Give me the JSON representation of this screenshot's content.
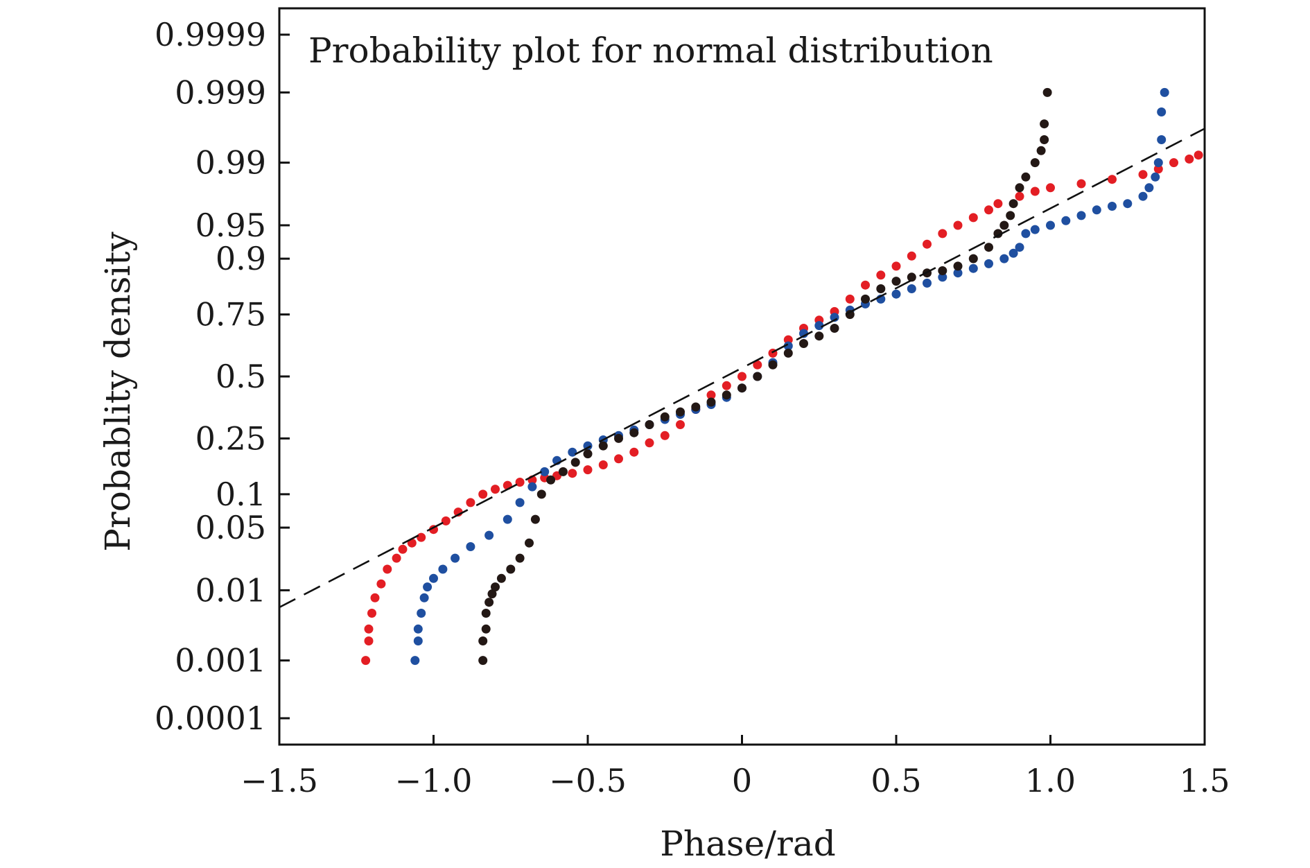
{
  "chart_data": {
    "type": "scatter",
    "title": "Probability plot for normal distribution",
    "xlabel": "Phase/rad",
    "ylabel": "Probablity density",
    "xlim": [
      -1.5,
      1.5
    ],
    "xticks": [
      -1.5,
      -1.0,
      -0.5,
      0,
      0.5,
      1.0,
      1.5
    ],
    "xtick_labels": [
      "−1.5",
      "−1.0",
      "−0.5",
      "0",
      "0.5",
      "1.0",
      "1.5"
    ],
    "yscale": "normal-probability",
    "yticks": [
      0.0001,
      0.001,
      0.01,
      0.05,
      0.1,
      0.25,
      0.5,
      0.75,
      0.9,
      0.95,
      0.99,
      0.999,
      0.9999
    ],
    "ytick_labels": [
      "0.0001",
      "0.001",
      "0.01",
      "0.05",
      "0.1",
      "0.25",
      "0.5",
      "0.75",
      "0.9",
      "0.95",
      "0.99",
      "0.999",
      "0.9999"
    ],
    "grid": false,
    "reference_line": {
      "style": "dashed",
      "color": "#111111",
      "x": [
        -1.5,
        1.5
      ],
      "p": [
        0.006,
        0.9965
      ]
    },
    "series": [
      {
        "color": "#e31e24",
        "x": [
          -1.22,
          -1.21,
          -1.21,
          -1.2,
          -1.19,
          -1.17,
          -1.15,
          -1.12,
          -1.1,
          -1.07,
          -1.04,
          -1.0,
          -0.96,
          -0.92,
          -0.88,
          -0.84,
          -0.8,
          -0.76,
          -0.72,
          -0.68,
          -0.64,
          -0.6,
          -0.55,
          -0.5,
          -0.45,
          -0.4,
          -0.35,
          -0.3,
          -0.25,
          -0.2,
          -0.15,
          -0.1,
          -0.05,
          0.0,
          0.05,
          0.1,
          0.15,
          0.2,
          0.25,
          0.3,
          0.35,
          0.4,
          0.45,
          0.5,
          0.55,
          0.6,
          0.65,
          0.7,
          0.75,
          0.8,
          0.83,
          0.9,
          0.95,
          1.0,
          1.1,
          1.2,
          1.3,
          1.35,
          1.4,
          1.45,
          1.48
        ],
        "p": [
          0.001,
          0.002,
          0.003,
          0.005,
          0.008,
          0.012,
          0.018,
          0.024,
          0.03,
          0.035,
          0.04,
          0.048,
          0.058,
          0.07,
          0.085,
          0.1,
          0.11,
          0.118,
          0.125,
          0.13,
          0.135,
          0.14,
          0.146,
          0.155,
          0.168,
          0.185,
          0.205,
          0.235,
          0.26,
          0.3,
          0.36,
          0.42,
          0.46,
          0.5,
          0.55,
          0.6,
          0.655,
          0.7,
          0.73,
          0.76,
          0.8,
          0.84,
          0.865,
          0.885,
          0.905,
          0.925,
          0.94,
          0.95,
          0.958,
          0.965,
          0.97,
          0.975,
          0.978,
          0.98,
          0.982,
          0.984,
          0.986,
          0.988,
          0.99,
          0.991,
          0.992
        ]
      },
      {
        "color": "#1f4fa0",
        "x": [
          -1.06,
          -1.05,
          -1.05,
          -1.04,
          -1.03,
          -1.02,
          -1.0,
          -0.97,
          -0.93,
          -0.88,
          -0.82,
          -0.76,
          -0.72,
          -0.68,
          -0.64,
          -0.6,
          -0.55,
          -0.5,
          -0.45,
          -0.4,
          -0.35,
          -0.3,
          -0.25,
          -0.2,
          -0.15,
          -0.1,
          -0.05,
          0.0,
          0.05,
          0.1,
          0.15,
          0.2,
          0.25,
          0.3,
          0.35,
          0.4,
          0.45,
          0.5,
          0.55,
          0.6,
          0.65,
          0.7,
          0.75,
          0.8,
          0.85,
          0.88,
          0.9,
          0.92,
          0.95,
          1.0,
          1.05,
          1.1,
          1.15,
          1.2,
          1.25,
          1.3,
          1.32,
          1.34,
          1.35,
          1.36,
          1.36,
          1.37
        ],
        "p": [
          0.001,
          0.002,
          0.003,
          0.005,
          0.008,
          0.011,
          0.014,
          0.018,
          0.024,
          0.032,
          0.042,
          0.06,
          0.085,
          0.115,
          0.15,
          0.18,
          0.205,
          0.225,
          0.245,
          0.26,
          0.28,
          0.3,
          0.32,
          0.34,
          0.36,
          0.38,
          0.41,
          0.45,
          0.5,
          0.56,
          0.63,
          0.68,
          0.71,
          0.74,
          0.765,
          0.785,
          0.8,
          0.815,
          0.83,
          0.845,
          0.86,
          0.87,
          0.88,
          0.89,
          0.9,
          0.91,
          0.92,
          0.94,
          0.945,
          0.95,
          0.955,
          0.96,
          0.965,
          0.968,
          0.97,
          0.975,
          0.98,
          0.985,
          0.99,
          0.995,
          0.998,
          0.999
        ]
      },
      {
        "color": "#231815",
        "x": [
          -0.84,
          -0.84,
          -0.83,
          -0.83,
          -0.82,
          -0.81,
          -0.8,
          -0.78,
          -0.75,
          -0.72,
          -0.69,
          -0.67,
          -0.65,
          -0.62,
          -0.58,
          -0.54,
          -0.5,
          -0.45,
          -0.4,
          -0.35,
          -0.3,
          -0.25,
          -0.2,
          -0.15,
          -0.1,
          -0.05,
          0.0,
          0.05,
          0.1,
          0.15,
          0.2,
          0.25,
          0.3,
          0.35,
          0.4,
          0.45,
          0.5,
          0.55,
          0.6,
          0.65,
          0.7,
          0.75,
          0.8,
          0.83,
          0.85,
          0.87,
          0.88,
          0.9,
          0.92,
          0.95,
          0.97,
          0.98,
          0.98,
          0.99
        ],
        "p": [
          0.001,
          0.002,
          0.003,
          0.005,
          0.007,
          0.009,
          0.011,
          0.014,
          0.018,
          0.024,
          0.035,
          0.06,
          0.1,
          0.13,
          0.15,
          0.175,
          0.2,
          0.225,
          0.25,
          0.27,
          0.3,
          0.33,
          0.35,
          0.37,
          0.39,
          0.42,
          0.45,
          0.5,
          0.55,
          0.6,
          0.64,
          0.67,
          0.7,
          0.75,
          0.8,
          0.83,
          0.85,
          0.86,
          0.87,
          0.875,
          0.885,
          0.9,
          0.92,
          0.94,
          0.95,
          0.96,
          0.97,
          0.98,
          0.985,
          0.99,
          0.993,
          0.995,
          0.997,
          0.999
        ]
      }
    ]
  }
}
